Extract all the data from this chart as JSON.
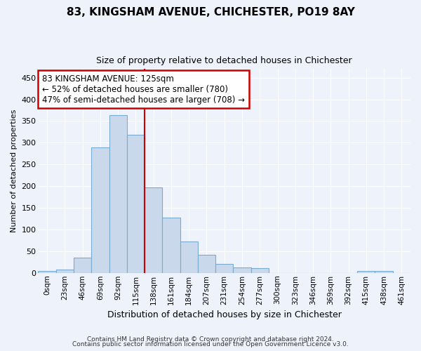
{
  "title": "83, KINGSHAM AVENUE, CHICHESTER, PO19 8AY",
  "subtitle": "Size of property relative to detached houses in Chichester",
  "xlabel": "Distribution of detached houses by size in Chichester",
  "ylabel": "Number of detached properties",
  "bar_color": "#c9d9eb",
  "bar_edge_color": "#7aaace",
  "background_color": "#eef2fb",
  "grid_color": "#ffffff",
  "categories": [
    "0sqm",
    "23sqm",
    "46sqm",
    "69sqm",
    "92sqm",
    "115sqm",
    "138sqm",
    "161sqm",
    "184sqm",
    "207sqm",
    "231sqm",
    "254sqm",
    "277sqm",
    "300sqm",
    "323sqm",
    "346sqm",
    "369sqm",
    "392sqm",
    "415sqm",
    "438sqm",
    "461sqm"
  ],
  "values": [
    5,
    7,
    35,
    290,
    363,
    318,
    197,
    128,
    72,
    42,
    21,
    12,
    11,
    0,
    0,
    0,
    0,
    0,
    5,
    5,
    0
  ],
  "ylim": [
    0,
    470
  ],
  "yticks": [
    0,
    50,
    100,
    150,
    200,
    250,
    300,
    350,
    400,
    450
  ],
  "property_line_x": 5.5,
  "annotation_text": "83 KINGSHAM AVENUE: 125sqm\n← 52% of detached houses are smaller (780)\n47% of semi-detached houses are larger (708) →",
  "annotation_box_color": "#ffffff",
  "annotation_box_edge": "#cc0000",
  "vline_color": "#cc0000",
  "footer1": "Contains HM Land Registry data © Crown copyright and database right 2024.",
  "footer2": "Contains public sector information licensed under the Open Government Licence v3.0."
}
